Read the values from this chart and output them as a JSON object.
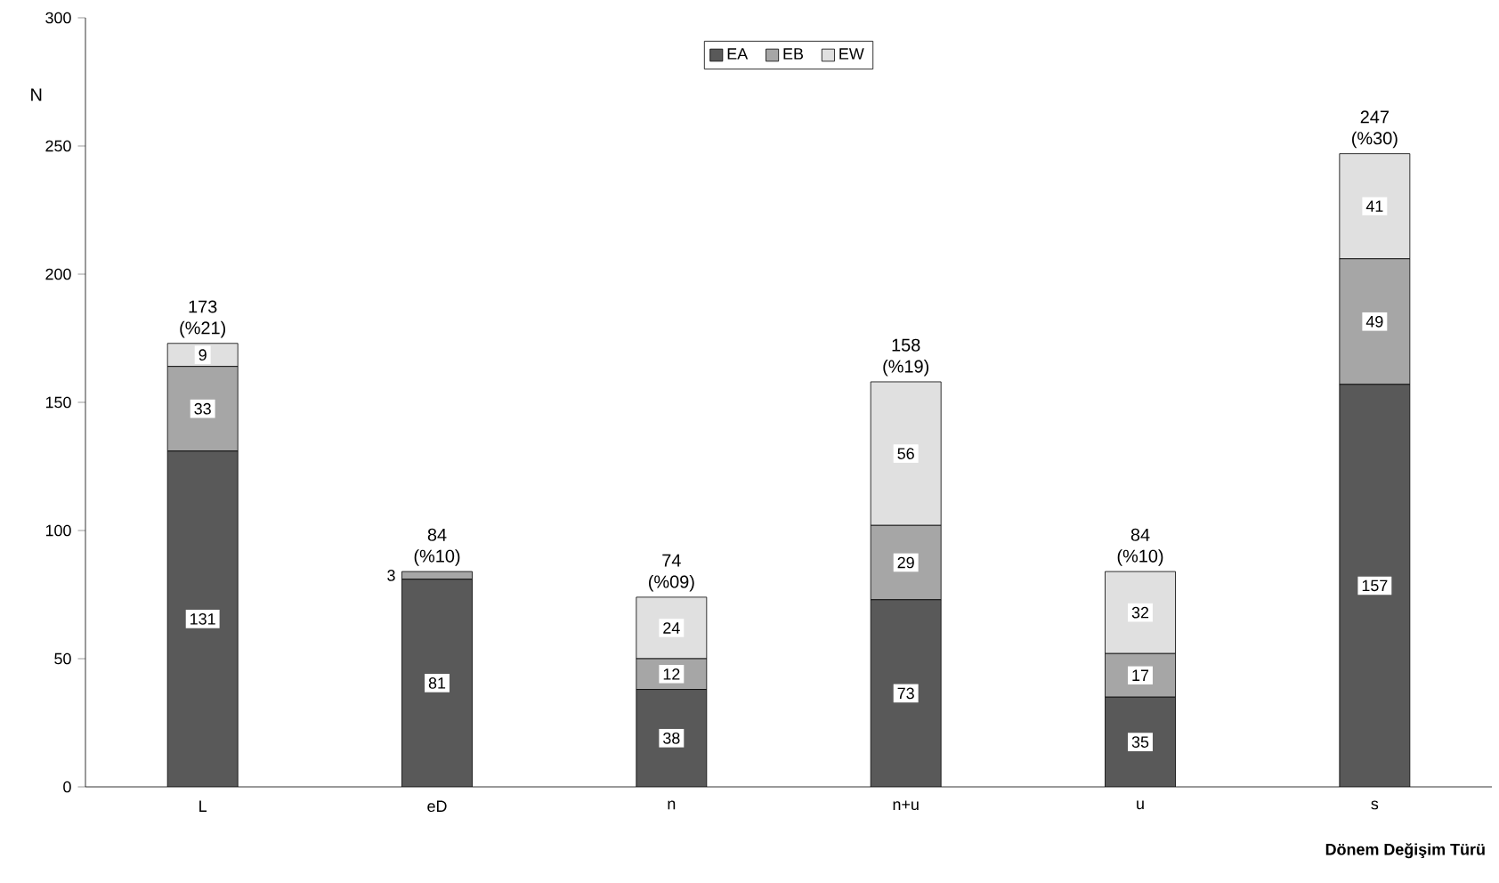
{
  "chart_data": {
    "type": "bar",
    "stacked": true,
    "categories": [
      "L",
      "eD",
      "n",
      "n+u",
      "u",
      "s"
    ],
    "series": [
      {
        "name": "EA",
        "color": "#595959",
        "values": [
          131,
          81,
          38,
          73,
          35,
          157
        ],
        "value_labels": [
          "131",
          "81",
          "38",
          "73",
          "35",
          "157"
        ]
      },
      {
        "name": "EB",
        "color": "#a6a6a6",
        "values": [
          33,
          3,
          12,
          29,
          17,
          49
        ],
        "value_labels": [
          "33",
          "3",
          "12",
          "29",
          "17",
          "49"
        ]
      },
      {
        "name": "EW",
        "color": "#e0e0e0",
        "values": [
          9,
          null,
          24,
          56,
          32,
          41
        ],
        "value_labels": [
          "9",
          null,
          "24",
          "56",
          "32",
          "41"
        ]
      }
    ],
    "totals": [
      "173 (%21)",
      "84 (%10)",
      "74 (%09)",
      "158 (%19)",
      "84 (%10)",
      "247 (%30)"
    ],
    "ylabel": "N",
    "xlabel": "Dönem Değişim Türü",
    "ylim": [
      0,
      300
    ],
    "yticks": [
      0,
      50,
      100,
      150,
      200,
      250,
      300
    ],
    "legend": "top",
    "grid": false
  }
}
